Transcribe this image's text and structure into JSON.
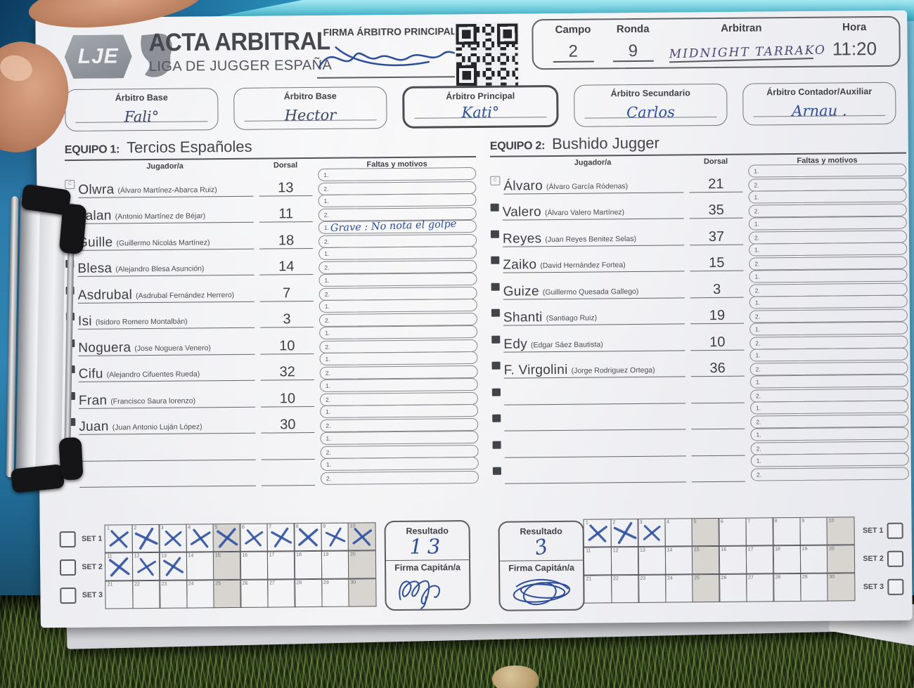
{
  "header": {
    "logo": "LJE",
    "title": "ACTA ARBITRAL",
    "subtitle": "LIGA DE JUGGER ESPAÑA",
    "firma_label": "FIRMA ÁRBITRO PRINCIPAL",
    "campo": {
      "label": "Campo",
      "value": "2"
    },
    "ronda": {
      "label": "Ronda",
      "value": "9"
    },
    "arbitran": {
      "label": "Arbitran",
      "value": "MIDNIGHT  TARRAKO"
    },
    "hora": {
      "label": "Hora",
      "value": "11:20"
    }
  },
  "referees": [
    {
      "label": "Árbitro Base",
      "name": "Fali°",
      "pen": "dark"
    },
    {
      "label": "Árbitro Base",
      "name": "Hector",
      "pen": "dark"
    },
    {
      "label": "Árbitro Principal",
      "name": "Kati°",
      "pen": "blue"
    },
    {
      "label": "Árbitro Secundario",
      "name": "Carlos",
      "pen": "blue"
    },
    {
      "label": "Árbitro Contador/Auxiliar",
      "name": "Arnau .",
      "pen": "blue"
    }
  ],
  "roster_columns": {
    "jugador": "Jugador/a",
    "dorsal": "Dorsal",
    "faltas": "Faltas y motivos"
  },
  "falta_line_numbers": [
    "1.",
    "2."
  ],
  "teams": [
    {
      "label": "EQUIPO 1:",
      "name": "Tercios Españoles",
      "resultado": "13",
      "marked_cells": [
        1,
        2,
        3,
        4,
        5,
        6,
        7,
        8,
        9,
        10,
        11,
        12,
        13
      ],
      "players": [
        {
          "alias": "Olwra",
          "full": "(Álvaro Martínez-Abarca Ruiz)",
          "dorsal": "13",
          "captain": true,
          "faltas": [
            "",
            ""
          ]
        },
        {
          "alias": "Falan",
          "full": "(Antonio Martínez de Béjar)",
          "dorsal": "11",
          "faltas": [
            "",
            ""
          ]
        },
        {
          "alias": "Guille",
          "full": "(Guillermo Nicolás Martínez)",
          "dorsal": "18",
          "faltas": [
            "Grave : No nota el golpe",
            ""
          ]
        },
        {
          "alias": "Blesa",
          "full": "(Alejandro Blesa Asunción)",
          "dorsal": "14",
          "faltas": [
            "",
            ""
          ]
        },
        {
          "alias": "Asdrubal",
          "full": "(Asdrubal Fernández Herrero)",
          "dorsal": "7",
          "faltas": [
            "",
            ""
          ]
        },
        {
          "alias": "Isi",
          "full": "(Isidoro Romero Montalbán)",
          "dorsal": "3",
          "faltas": [
            "",
            ""
          ]
        },
        {
          "alias": "Noguera",
          "full": "(Jose Noguera Venero)",
          "dorsal": "10",
          "faltas": [
            "",
            ""
          ]
        },
        {
          "alias": "Cifu",
          "full": "(Alejandro  Cifuentes Rueda)",
          "dorsal": "32",
          "faltas": [
            "",
            ""
          ]
        },
        {
          "alias": "Fran",
          "full": "(Francisco Saura lorenzo)",
          "dorsal": "10",
          "faltas": [
            "",
            ""
          ]
        },
        {
          "alias": "Juan",
          "full": "(Juan Antonio Luján López)",
          "dorsal": "30",
          "faltas": [
            "",
            ""
          ]
        },
        {
          "alias": "",
          "full": "",
          "dorsal": "",
          "faltas": [
            "",
            ""
          ]
        },
        {
          "alias": "",
          "full": "",
          "dorsal": "",
          "faltas": [
            "",
            ""
          ]
        }
      ]
    },
    {
      "label": "EQUIPO 2:",
      "name": "Bushido Jugger",
      "resultado": "3",
      "marked_cells": [
        1,
        2,
        3
      ],
      "players": [
        {
          "alias": "Álvaro",
          "full": "(Álvaro García Ródenas)",
          "dorsal": "21",
          "captain": true,
          "faltas": [
            "",
            ""
          ]
        },
        {
          "alias": "Valero",
          "full": "(Álvaro  Valero Martínez)",
          "dorsal": "35",
          "faltas": [
            "",
            ""
          ]
        },
        {
          "alias": "Reyes",
          "full": "(Juan Reyes Benitez Selas)",
          "dorsal": "37",
          "faltas": [
            "",
            ""
          ]
        },
        {
          "alias": "Zaiko",
          "full": "(David  Hernández Fortea)",
          "dorsal": "15",
          "faltas": [
            "",
            ""
          ]
        },
        {
          "alias": "Guize",
          "full": "(Guillermo  Quesada Gallego)",
          "dorsal": "3",
          "faltas": [
            "",
            ""
          ]
        },
        {
          "alias": "Shanti",
          "full": "(Santiago Ruiz)",
          "dorsal": "19",
          "faltas": [
            "",
            ""
          ]
        },
        {
          "alias": "Edy",
          "full": "(Edgar Sáez Bautista)",
          "dorsal": "10",
          "faltas": [
            "",
            ""
          ]
        },
        {
          "alias": "F. Virgolini",
          "full": "(Jorge Rodriguez Ortega)",
          "dorsal": "36",
          "faltas": [
            "",
            ""
          ]
        },
        {
          "alias": "",
          "full": "",
          "dorsal": "",
          "faltas": [
            "",
            ""
          ]
        },
        {
          "alias": "",
          "full": "",
          "dorsal": "",
          "faltas": [
            "",
            ""
          ]
        },
        {
          "alias": "",
          "full": "",
          "dorsal": "",
          "faltas": [
            "",
            ""
          ]
        },
        {
          "alias": "",
          "full": "",
          "dorsal": "",
          "faltas": [
            "",
            ""
          ]
        }
      ]
    }
  ],
  "score": {
    "set_labels": [
      "SET 1",
      "SET 2",
      "SET 3"
    ],
    "cells_per_row": 10,
    "first_cell": 1,
    "last_cell": 30,
    "shaded_every": 5,
    "resultado_label": "Resultado",
    "firma_label": "Firma Capitán/a"
  },
  "signatures": {
    "arbitro_principal": "handwritten-scribble",
    "capitan_equipo1": "handwritten-scribble",
    "capitan_equipo2": "handwritten-scribble"
  },
  "colors": {
    "pen_blue": "#2e4d9b",
    "pen_dark": "#3a4668",
    "pen_purple": "#4b4577",
    "print_gray": "#3e4046",
    "clipboard_cyan": "#49b9cf",
    "clipboard_blue": "#1d5e8c",
    "grass_green": "#243016",
    "paper": "#f0f1f4"
  }
}
